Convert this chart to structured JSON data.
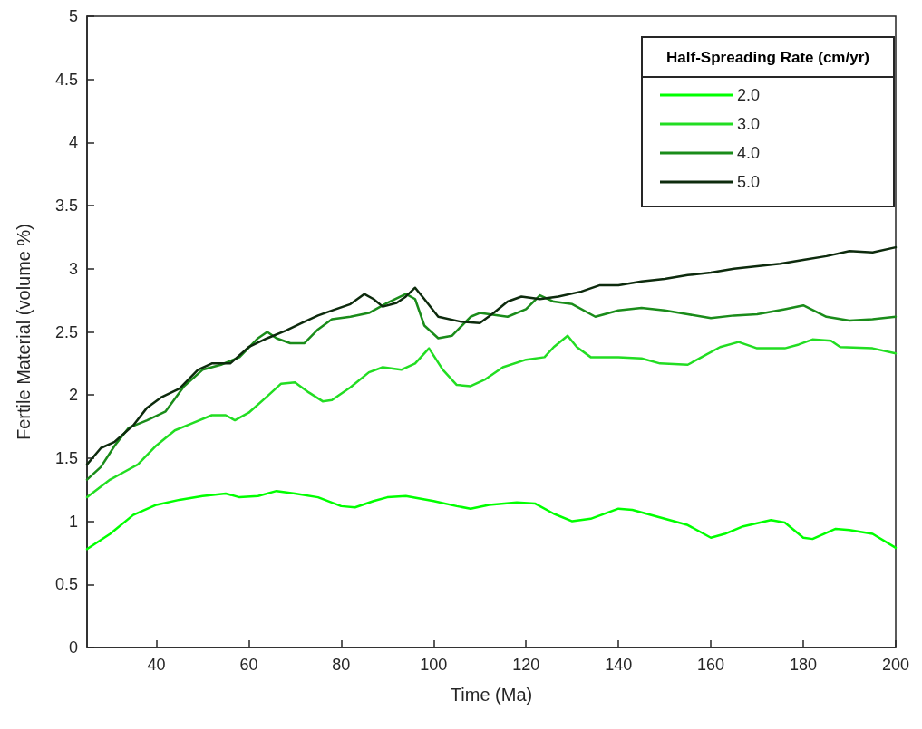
{
  "chart_data": {
    "type": "line",
    "xlabel": "Time (Ma)",
    "ylabel": "Fertile Material (volume %)",
    "legend_title": "Half-Spreading Rate (cm/yr)",
    "legend": "top right",
    "grid": false,
    "marker": "none",
    "line_style": "solid",
    "xlim": [
      25,
      200
    ],
    "xticks": [
      40,
      60,
      80,
      100,
      120,
      140,
      160,
      180,
      200
    ],
    "ylim": [
      0,
      5
    ],
    "yticks": [
      0,
      0.5,
      1,
      1.5,
      2,
      2.5,
      3,
      3.5,
      4,
      4.5,
      5
    ],
    "series": [
      {
        "name": "2.0",
        "color": "#00ff00",
        "x": [
          25,
          30,
          35,
          40,
          45,
          50,
          55,
          58,
          62,
          66,
          70,
          75,
          80,
          83,
          87,
          90,
          94,
          100,
          105,
          108,
          112,
          118,
          122,
          126,
          130,
          134,
          140,
          143,
          150,
          155,
          160,
          163,
          167,
          173,
          176,
          180,
          182,
          187,
          190,
          195,
          200
        ],
        "values": [
          0.78,
          0.9,
          1.05,
          1.13,
          1.17,
          1.2,
          1.22,
          1.19,
          1.2,
          1.24,
          1.22,
          1.19,
          1.12,
          1.11,
          1.16,
          1.19,
          1.2,
          1.16,
          1.12,
          1.1,
          1.13,
          1.15,
          1.14,
          1.06,
          1.0,
          1.02,
          1.1,
          1.09,
          1.02,
          0.97,
          0.87,
          0.9,
          0.96,
          1.01,
          0.99,
          0.87,
          0.86,
          0.94,
          0.93,
          0.9,
          0.79
        ]
      },
      {
        "name": "3.0",
        "color": "#22dd22",
        "x": [
          25,
          30,
          33,
          36,
          40,
          44,
          48,
          52,
          55,
          57,
          60,
          64,
          67,
          70,
          73,
          76,
          78,
          82,
          86,
          89,
          93,
          96,
          99,
          102,
          105,
          108,
          111,
          115,
          120,
          124,
          126,
          129,
          131,
          134,
          140,
          145,
          149,
          155,
          158,
          162,
          166,
          170,
          176,
          179,
          182,
          186,
          188,
          195,
          200
        ],
        "values": [
          1.19,
          1.33,
          1.39,
          1.45,
          1.6,
          1.72,
          1.78,
          1.84,
          1.84,
          1.8,
          1.86,
          1.99,
          2.09,
          2.1,
          2.02,
          1.95,
          1.96,
          2.06,
          2.18,
          2.22,
          2.2,
          2.25,
          2.37,
          2.2,
          2.08,
          2.07,
          2.12,
          2.22,
          2.28,
          2.3,
          2.38,
          2.47,
          2.38,
          2.3,
          2.3,
          2.29,
          2.25,
          2.24,
          2.3,
          2.38,
          2.42,
          2.37,
          2.37,
          2.4,
          2.44,
          2.43,
          2.38,
          2.37,
          2.33
        ]
      },
      {
        "name": "4.0",
        "color": "#1a8c1a",
        "x": [
          25,
          28,
          31,
          34,
          38,
          42,
          46,
          50,
          54,
          58,
          62,
          64,
          66,
          69,
          72,
          75,
          78,
          82,
          86,
          90,
          94,
          96,
          98,
          101,
          104,
          108,
          110,
          116,
          120,
          123,
          126,
          130,
          135,
          140,
          145,
          150,
          155,
          160,
          165,
          170,
          176,
          180,
          185,
          190,
          195,
          200
        ],
        "values": [
          1.33,
          1.43,
          1.6,
          1.74,
          1.8,
          1.87,
          2.07,
          2.2,
          2.24,
          2.3,
          2.45,
          2.5,
          2.45,
          2.41,
          2.41,
          2.52,
          2.6,
          2.62,
          2.65,
          2.73,
          2.8,
          2.76,
          2.55,
          2.45,
          2.47,
          2.62,
          2.65,
          2.62,
          2.68,
          2.79,
          2.74,
          2.72,
          2.62,
          2.67,
          2.69,
          2.67,
          2.64,
          2.61,
          2.63,
          2.64,
          2.68,
          2.71,
          2.62,
          2.59,
          2.6,
          2.62
        ]
      },
      {
        "name": "5.0",
        "color": "#0d2b0d",
        "x": [
          25,
          28,
          31,
          35,
          38,
          41,
          45,
          49,
          52,
          56,
          60,
          64,
          68,
          72,
          75,
          78,
          82,
          85,
          87,
          89,
          92,
          94,
          96,
          98,
          101,
          106,
          110,
          113,
          116,
          119,
          123,
          127,
          132,
          136,
          140,
          145,
          150,
          155,
          160,
          165,
          170,
          175,
          180,
          185,
          190,
          195,
          200
        ],
        "values": [
          1.45,
          1.58,
          1.63,
          1.76,
          1.9,
          1.98,
          2.05,
          2.2,
          2.25,
          2.25,
          2.38,
          2.45,
          2.51,
          2.58,
          2.63,
          2.67,
          2.72,
          2.8,
          2.76,
          2.7,
          2.73,
          2.78,
          2.85,
          2.76,
          2.62,
          2.58,
          2.57,
          2.65,
          2.74,
          2.78,
          2.76,
          2.78,
          2.82,
          2.87,
          2.87,
          2.9,
          2.92,
          2.95,
          2.97,
          3.0,
          3.02,
          3.04,
          3.07,
          3.1,
          3.14,
          3.13,
          3.17
        ]
      }
    ]
  }
}
